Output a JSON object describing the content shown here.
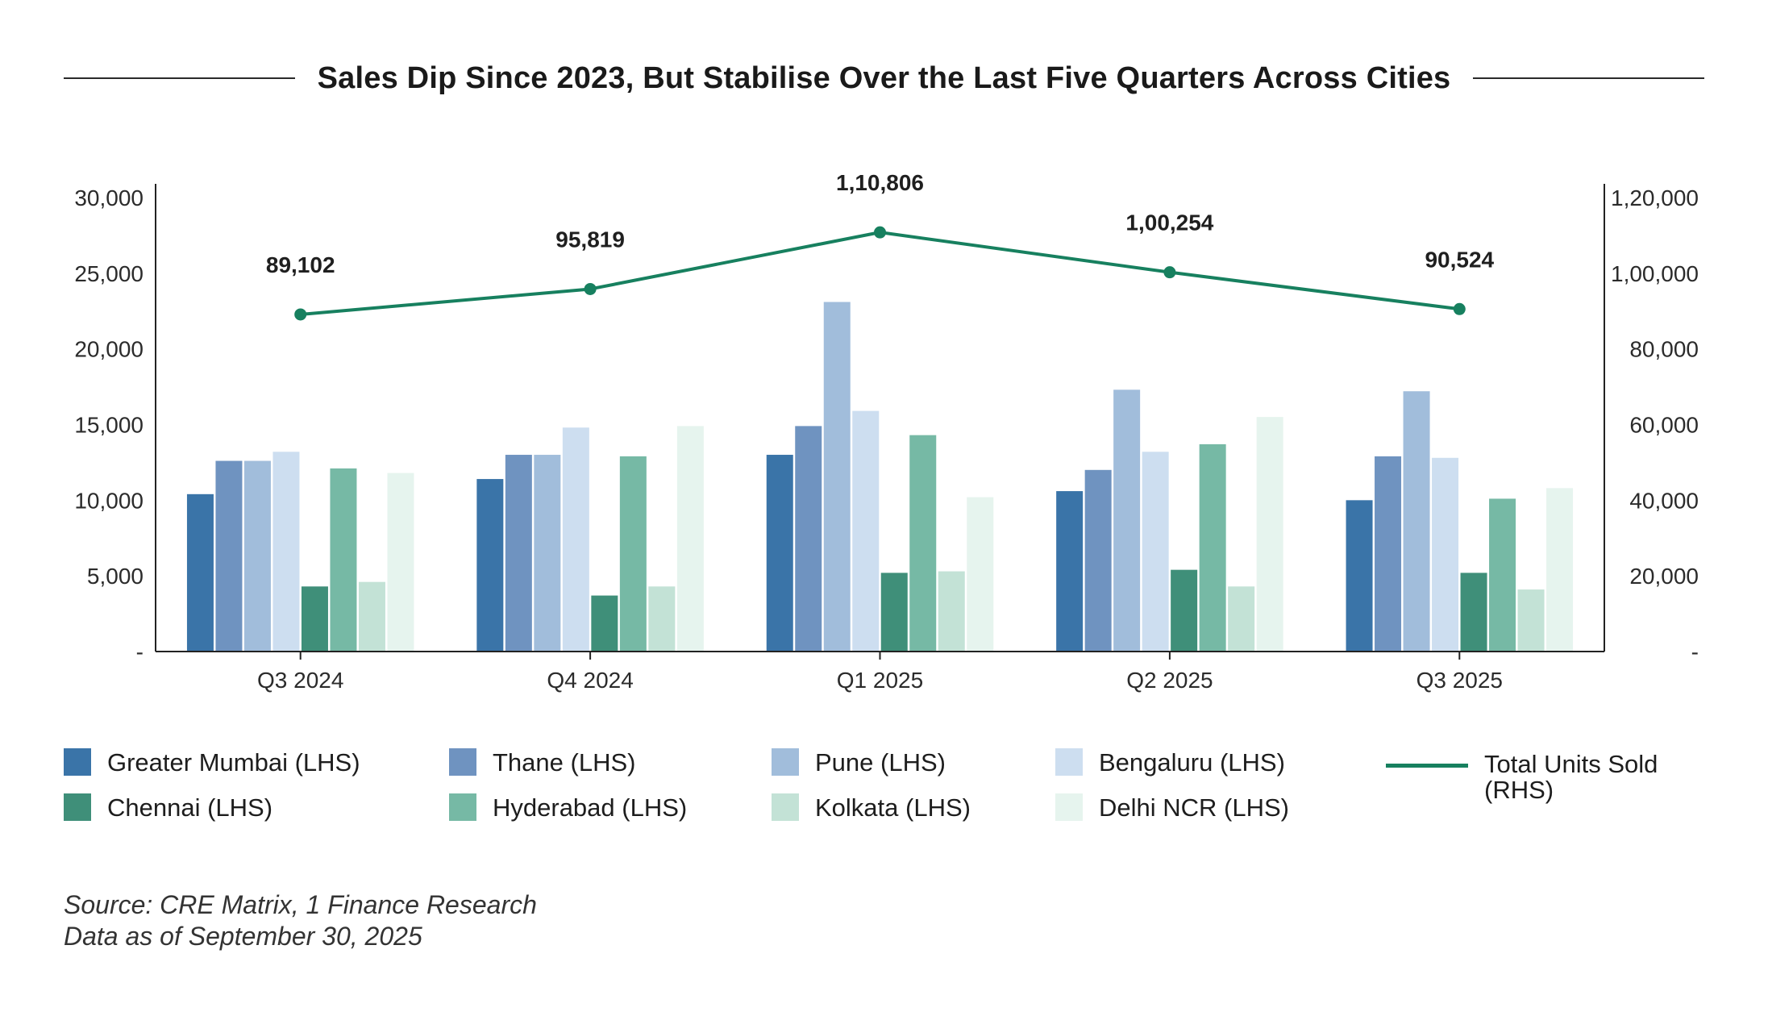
{
  "title": "Sales Dip Since 2023, But Stabilise Over the Last Five Quarters Across Cities",
  "chart_data": {
    "type": "bar",
    "categories": [
      "Q3 2024",
      "Q4 2024",
      "Q1 2025",
      "Q2 2025",
      "Q3 2025"
    ],
    "series": [
      {
        "name": "Greater Mumbai (LHS)",
        "color": "#3a74a8",
        "values": [
          10400,
          11400,
          13000,
          10600,
          10000
        ]
      },
      {
        "name": "Thane (LHS)",
        "color": "#6f93c0",
        "values": [
          12600,
          13000,
          14900,
          12000,
          12900
        ]
      },
      {
        "name": "Pune (LHS)",
        "color": "#a1bddb",
        "values": [
          12600,
          13000,
          23100,
          17300,
          17200
        ]
      },
      {
        "name": "Bengaluru (LHS)",
        "color": "#cddef0",
        "values": [
          13200,
          14800,
          15900,
          13200,
          12800
        ]
      },
      {
        "name": "Chennai (LHS)",
        "color": "#3f8f79",
        "values": [
          4300,
          3700,
          5200,
          5400,
          5200
        ]
      },
      {
        "name": "Hyderabad (LHS)",
        "color": "#76b9a5",
        "values": [
          12100,
          12900,
          14300,
          13700,
          10100
        ]
      },
      {
        "name": "Kolkata (LHS)",
        "color": "#c3e2d6",
        "values": [
          4600,
          4300,
          5300,
          4300,
          4100
        ]
      },
      {
        "name": "Delhi NCR (LHS)",
        "color": "#e6f4ee",
        "values": [
          11800,
          14900,
          10200,
          15500,
          10800
        ]
      }
    ],
    "line_series": {
      "name": "Total Units Sold (RHS)",
      "color": "#17805f",
      "values": [
        89102,
        95819,
        110806,
        100254,
        90524
      ],
      "labels": [
        "89,102",
        "95,819",
        "1,10,806",
        "1,00,254",
        "90,524"
      ]
    },
    "ylim_left": [
      0,
      30000
    ],
    "ylim_right": [
      0,
      120000
    ],
    "left_ticks": [
      0,
      5000,
      10000,
      15000,
      20000,
      25000,
      30000
    ],
    "left_tick_labels": [
      "-",
      "5,000",
      "10,000",
      "15,000",
      "20,000",
      "25,000",
      "30,000"
    ],
    "right_ticks": [
      0,
      20000,
      40000,
      60000,
      80000,
      100000,
      120000
    ],
    "right_tick_labels": [
      "-",
      "20,000",
      "40,000",
      "60,000",
      "80,000",
      "1,00,000",
      "1,20,000"
    ],
    "legend_position": "bottom"
  },
  "legend": {
    "line_label": "Total Units Sold (RHS)"
  },
  "source": {
    "line1": "Source: CRE Matrix, 1 Finance Research",
    "line2": "Data as of September 30, 2025"
  }
}
